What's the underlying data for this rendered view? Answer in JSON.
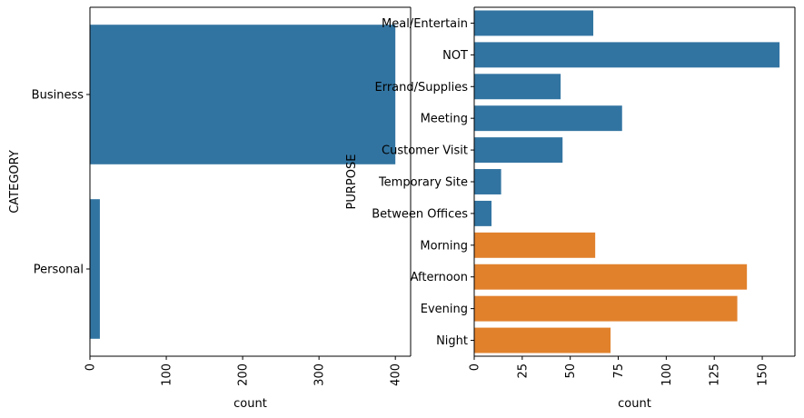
{
  "chart_data": [
    {
      "type": "bar",
      "orientation": "horizontal",
      "categories": [
        "Business",
        "Personal"
      ],
      "values": [
        400,
        13
      ],
      "xlabel": "count",
      "ylabel": "CATEGORY",
      "xlim": [
        0,
        420
      ],
      "xticks": [
        0,
        100,
        200,
        300,
        400
      ],
      "bar_colors": [
        "#3274a1",
        "#3274a1"
      ],
      "grid": false
    },
    {
      "type": "bar",
      "orientation": "horizontal",
      "categories": [
        "Meal/Entertain",
        "NOT",
        "Errand/Supplies",
        "Meeting",
        "Customer Visit",
        "Temporary Site",
        "Between Offices",
        "Morning",
        "Afternoon",
        "Evening",
        "Night"
      ],
      "values": [
        62,
        159,
        45,
        77,
        46,
        14,
        9,
        63,
        142,
        137,
        71
      ],
      "xlabel": "count",
      "ylabel": "PURPOSE",
      "xlim": [
        0,
        167
      ],
      "xticks": [
        0,
        25,
        50,
        75,
        100,
        125,
        150
      ],
      "bar_colors": [
        "#3274a1",
        "#3274a1",
        "#3274a1",
        "#3274a1",
        "#3274a1",
        "#3274a1",
        "#3274a1",
        "#e1812c",
        "#e1812c",
        "#e1812c",
        "#e1812c"
      ],
      "grid": false
    }
  ]
}
